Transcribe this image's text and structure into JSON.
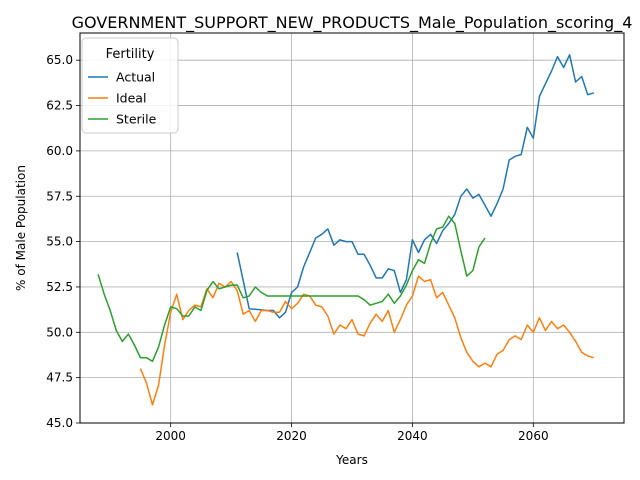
{
  "chart_data": {
    "type": "line",
    "title": "GOVERNMENT_SUPPORT_NEW_PRODUCTS_Male_Population_scoring_4",
    "xlabel": "Years",
    "ylabel": "% of Male Population",
    "xlim": [
      1985,
      2075
    ],
    "ylim": [
      45,
      66.5
    ],
    "xticks": [
      2000,
      2020,
      2040,
      2060
    ],
    "yticks": [
      45.0,
      47.5,
      50.0,
      52.5,
      55.0,
      57.5,
      60.0,
      62.5,
      65.0
    ],
    "ytick_labels": [
      "45.0",
      "47.5",
      "50.0",
      "52.5",
      "55.0",
      "57.5",
      "60.0",
      "62.5",
      "65.0"
    ],
    "grid": true,
    "legend": {
      "title": "Fertility",
      "position": "top-left"
    },
    "series": [
      {
        "name": "Actual",
        "color": "#1f77b4",
        "x": [
          2011,
          2013,
          2016,
          2017,
          2018,
          2019,
          2020,
          2021,
          2022,
          2023,
          2024,
          2025,
          2026,
          2027,
          2028,
          2029,
          2030,
          2031,
          2032,
          2033,
          2034,
          2035,
          2036,
          2037,
          2038,
          2039,
          2040,
          2041,
          2042,
          2043,
          2044,
          2045,
          2046,
          2047,
          2048,
          2049,
          2050,
          2051,
          2052,
          2053,
          2054,
          2055,
          2056,
          2057,
          2058,
          2059,
          2060,
          2061,
          2062,
          2063,
          2064,
          2065,
          2066,
          2067,
          2068,
          2069,
          2070
        ],
        "y": [
          54.4,
          51.3,
          51.2,
          51.2,
          50.8,
          51.1,
          52.2,
          52.5,
          53.6,
          54.4,
          55.2,
          55.4,
          55.7,
          54.8,
          55.1,
          55.0,
          55.0,
          54.3,
          54.3,
          53.7,
          53.0,
          53.0,
          53.5,
          53.4,
          52.2,
          52.9,
          55.1,
          54.4,
          55.1,
          55.4,
          54.9,
          55.6,
          56.0,
          56.5,
          57.5,
          57.9,
          57.4,
          57.6,
          57.0,
          56.4,
          57.1,
          57.9,
          59.5,
          59.7,
          59.8,
          61.3,
          60.7,
          63.0,
          63.7,
          64.4,
          65.2,
          64.6,
          65.3,
          63.8,
          64.1,
          63.1,
          63.2
        ]
      },
      {
        "name": "Ideal",
        "color": "#ff7f0e",
        "x": [
          1995,
          1996,
          1997,
          1998,
          1999,
          2000,
          2001,
          2002,
          2003,
          2004,
          2005,
          2006,
          2007,
          2008,
          2009,
          2010,
          2011,
          2012,
          2013,
          2014,
          2015,
          2016,
          2017,
          2018,
          2019,
          2020,
          2021,
          2022,
          2023,
          2024,
          2025,
          2026,
          2027,
          2028,
          2029,
          2030,
          2031,
          2032,
          2033,
          2034,
          2035,
          2036,
          2037,
          2038,
          2039,
          2040,
          2041,
          2042,
          2043,
          2044,
          2045,
          2046,
          2047,
          2048,
          2049,
          2050,
          2051,
          2052,
          2053,
          2054,
          2055,
          2056,
          2057,
          2058,
          2059,
          2060,
          2061,
          2062,
          2063,
          2064,
          2065,
          2066,
          2067,
          2068,
          2069,
          2070
        ],
        "y": [
          48.0,
          47.2,
          46.0,
          47.1,
          49.3,
          51.1,
          52.1,
          50.7,
          51.2,
          51.5,
          51.4,
          52.4,
          51.9,
          52.7,
          52.5,
          52.8,
          52.3,
          51.0,
          51.2,
          50.6,
          51.2,
          51.2,
          51.1,
          51.1,
          51.7,
          51.3,
          51.6,
          52.1,
          52.0,
          51.5,
          51.4,
          50.9,
          49.9,
          50.4,
          50.2,
          50.7,
          49.9,
          49.8,
          50.5,
          51.0,
          50.6,
          51.2,
          50.0,
          50.7,
          51.5,
          52.0,
          53.1,
          52.8,
          52.9,
          51.9,
          52.2,
          51.5,
          50.8,
          49.7,
          48.9,
          48.4,
          48.1,
          48.3,
          48.1,
          48.8,
          49.0,
          49.6,
          49.8,
          49.6,
          50.4,
          50.0,
          50.8,
          50.1,
          50.6,
          50.2,
          50.4,
          50.0,
          49.5,
          48.9,
          48.7,
          48.6
        ]
      },
      {
        "name": "Sterile",
        "color": "#2ca02c",
        "x": [
          1988,
          1989,
          1990,
          1991,
          1992,
          1993,
          1994,
          1995,
          1996,
          1997,
          1998,
          1999,
          2000,
          2001,
          2002,
          2003,
          2004,
          2005,
          2006,
          2007,
          2008,
          2009,
          2010,
          2011,
          2012,
          2013,
          2014,
          2015,
          2016,
          2017,
          2018,
          2019,
          2020,
          2021,
          2022,
          2023,
          2024,
          2025,
          2026,
          2027,
          2028,
          2029,
          2030,
          2031,
          2032,
          2033,
          2034,
          2035,
          2036,
          2037,
          2038,
          2039,
          2040,
          2041,
          2042,
          2043,
          2044,
          2045,
          2046,
          2047,
          2048,
          2049,
          2050,
          2051,
          2052
        ],
        "y": [
          53.2,
          52.1,
          51.2,
          50.1,
          49.5,
          49.9,
          49.3,
          48.6,
          48.6,
          48.4,
          49.2,
          50.4,
          51.4,
          51.3,
          50.9,
          50.9,
          51.4,
          51.2,
          52.3,
          52.8,
          52.4,
          52.5,
          52.6,
          52.6,
          51.9,
          52.0,
          52.5,
          52.2,
          52.0,
          52.0,
          52.0,
          52.0,
          52.0,
          52.0,
          52.0,
          52.0,
          52.0,
          52.0,
          52.0,
          52.0,
          52.0,
          52.0,
          52.0,
          52.0,
          51.8,
          51.5,
          51.6,
          51.7,
          52.1,
          51.6,
          52.0,
          52.6,
          53.4,
          54.0,
          53.8,
          54.9,
          55.7,
          55.8,
          56.4,
          56.0,
          54.5,
          53.1,
          53.4,
          54.7,
          55.2
        ]
      }
    ]
  }
}
